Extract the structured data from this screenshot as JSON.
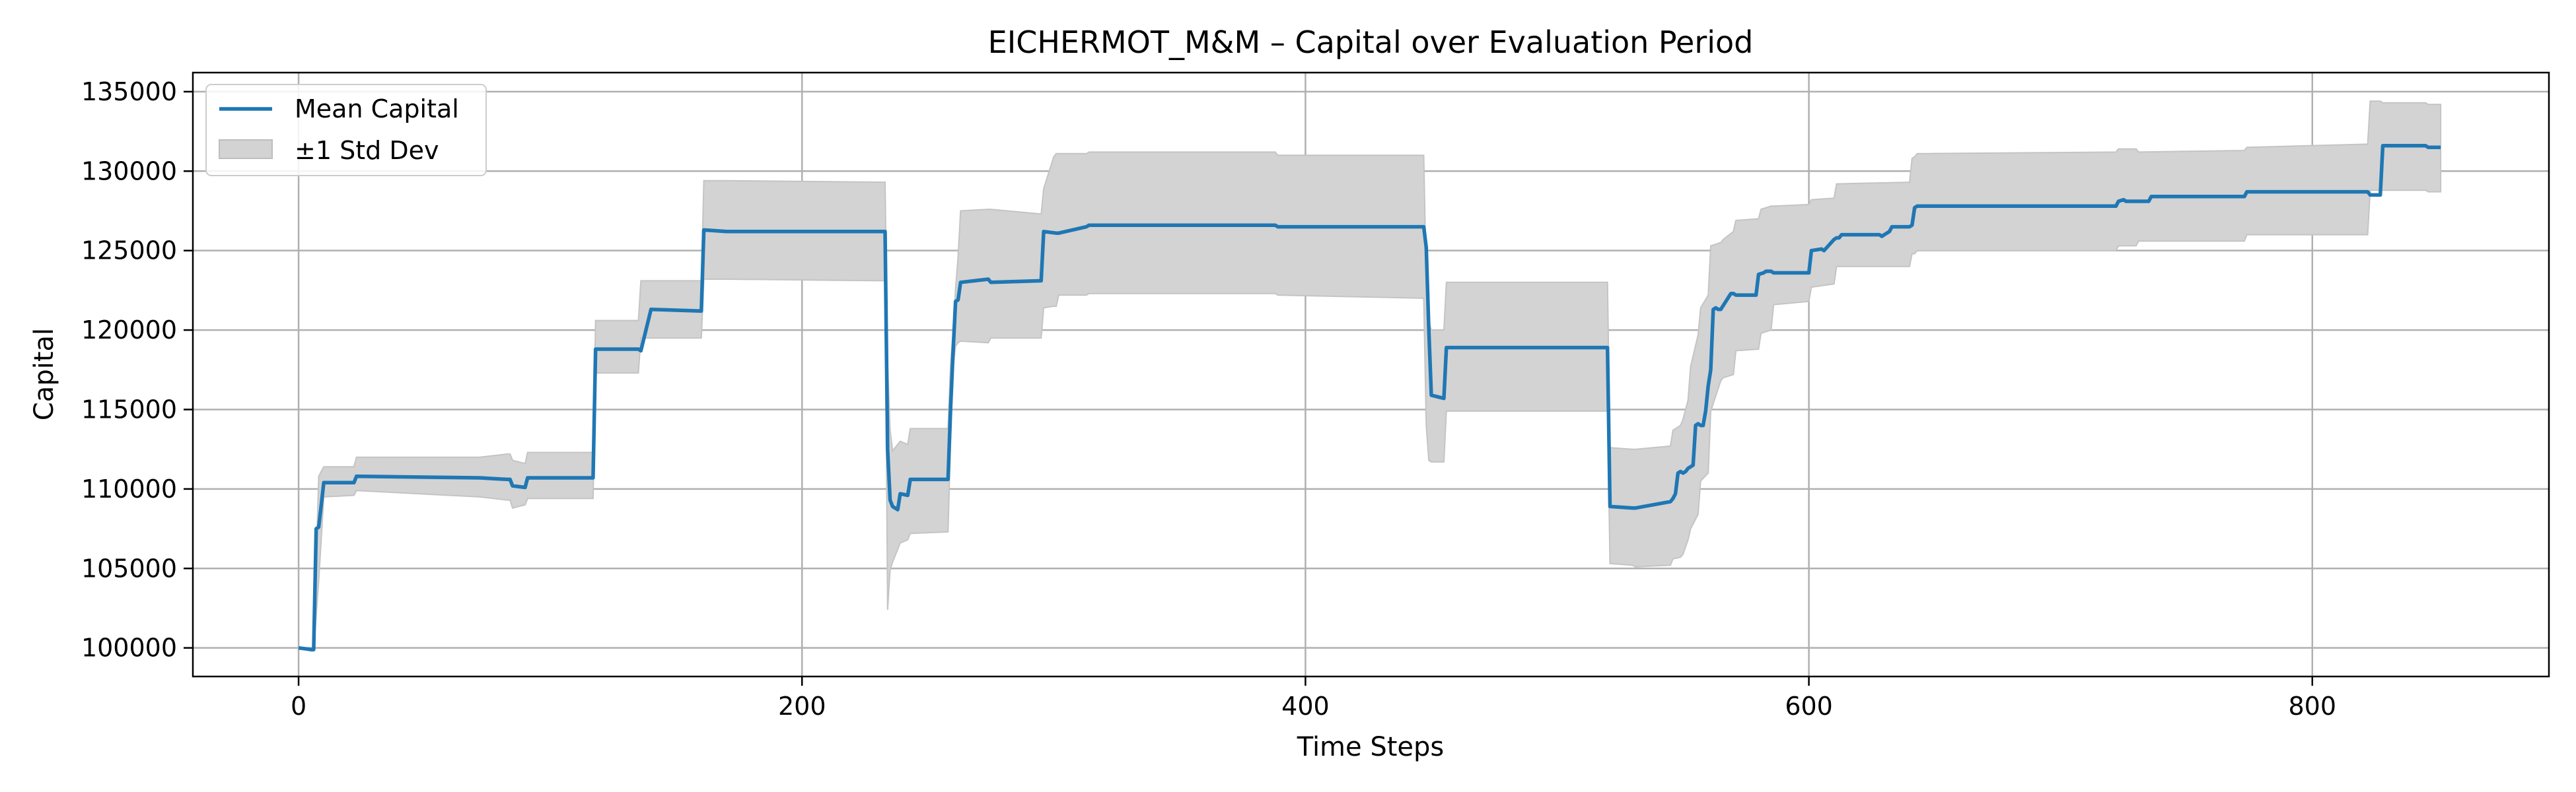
{
  "chart_data": {
    "type": "line",
    "title": "EICHERMOT_M&M – Capital over Evaluation Period",
    "xlabel": "Time Steps",
    "ylabel": "Capital",
    "xlim": [
      -42,
      894
    ],
    "ylim": [
      98200,
      136200
    ],
    "xticks": [
      0,
      200,
      400,
      600,
      800
    ],
    "yticks": [
      100000,
      105000,
      110000,
      115000,
      120000,
      125000,
      130000,
      135000
    ],
    "grid": true,
    "legend": "top-left",
    "colors": {
      "mean": "#1f77b4",
      "band": "#d3d3d3"
    },
    "series": [
      {
        "name": "Mean Capital",
        "kind": "line",
        "x": [
          0,
          5,
          6,
          7,
          8,
          9,
          10,
          22,
          23,
          72,
          83,
          84,
          85,
          90,
          91,
          117,
          118,
          135,
          136,
          140,
          160,
          161,
          170,
          233,
          234,
          235,
          236,
          238,
          239,
          242,
          243,
          258,
          259,
          260,
          261,
          262,
          263,
          274,
          275,
          295,
          296,
          301,
          302,
          313,
          314,
          388,
          389,
          447,
          448,
          449,
          450,
          455,
          456,
          520,
          521,
          530,
          531,
          545,
          546,
          547,
          548,
          549,
          550,
          551,
          552,
          553,
          554,
          555,
          556,
          557,
          558,
          559,
          560,
          561,
          562,
          563,
          564,
          565,
          569,
          570,
          571,
          579,
          580,
          582,
          583,
          585,
          586,
          600,
          601,
          605,
          606,
          610,
          611,
          612,
          613,
          614,
          628,
          629,
          630,
          631,
          632,
          633,
          634,
          640,
          641,
          642,
          643,
          722,
          723,
          725,
          726,
          735,
          736,
          773,
          774,
          800,
          801,
          822,
          823,
          827,
          828,
          845,
          846,
          850,
          851
        ],
        "y": [
          100000,
          99900,
          99900,
          107500,
          107600,
          109000,
          110400,
          110400,
          110800,
          110700,
          110600,
          110600,
          110200,
          110100,
          110700,
          110700,
          118800,
          118800,
          118700,
          121300,
          121200,
          126300,
          126200,
          126200,
          112500,
          109300,
          108900,
          108700,
          109700,
          109600,
          110600,
          110600,
          115000,
          118600,
          121800,
          121900,
          123000,
          123200,
          123000,
          123100,
          126200,
          126100,
          126100,
          126500,
          126600,
          126600,
          126500,
          126500,
          125200,
          120000,
          115900,
          115700,
          118900,
          118900,
          108900,
          108800,
          108800,
          109200,
          109400,
          109700,
          111000,
          111100,
          111000,
          111100,
          111300,
          111400,
          111500,
          114000,
          114100,
          114000,
          114000,
          114900,
          116500,
          117500,
          121300,
          121400,
          121300,
          121300,
          122300,
          122300,
          122200,
          122200,
          123500,
          123600,
          123700,
          123700,
          123600,
          123600,
          125000,
          125100,
          125000,
          125700,
          125800,
          125800,
          126000,
          126000,
          126000,
          125900,
          126000,
          126100,
          126200,
          126500,
          126500,
          126500,
          126600,
          127700,
          127800,
          127800,
          128100,
          128200,
          128100,
          128100,
          128400,
          128400,
          128700,
          128700,
          128700,
          128700,
          128500,
          128500,
          131600,
          131600,
          131500,
          131500,
          131500
        ]
      },
      {
        "name": "±1 Std Dev",
        "kind": "band",
        "x": [
          0,
          5,
          6,
          8,
          10,
          22,
          23,
          72,
          83,
          84,
          85,
          90,
          91,
          117,
          118,
          135,
          136,
          160,
          161,
          170,
          233,
          234,
          235,
          236,
          238,
          239,
          242,
          243,
          258,
          259,
          260,
          261,
          262,
          263,
          274,
          275,
          295,
          296,
          300,
          301,
          302,
          313,
          314,
          388,
          389,
          447,
          448,
          449,
          450,
          455,
          456,
          520,
          521,
          530,
          531,
          545,
          546,
          549,
          550,
          552,
          553,
          556,
          557,
          560,
          561,
          565,
          566,
          570,
          571,
          580,
          581,
          585,
          586,
          600,
          601,
          610,
          611,
          640,
          641,
          642,
          643,
          722,
          723,
          730,
          731,
          773,
          774,
          822,
          823,
          827,
          828,
          845,
          846,
          851
        ],
        "lower": [
          100000,
          99800,
          99800,
          104200,
          109500,
          109600,
          109900,
          109500,
          109300,
          109300,
          108800,
          109000,
          109400,
          109400,
          117300,
          117300,
          119500,
          119500,
          123200,
          123200,
          123100,
          102400,
          104900,
          105400,
          106200,
          106600,
          106800,
          107200,
          107300,
          112900,
          117600,
          119000,
          119200,
          119300,
          119200,
          119500,
          119500,
          121400,
          121500,
          121500,
          122200,
          122200,
          122300,
          122300,
          122200,
          122000,
          114000,
          111800,
          111700,
          111700,
          114900,
          114900,
          105300,
          105200,
          105100,
          105200,
          105600,
          105700,
          105900,
          106800,
          107500,
          108400,
          110500,
          111000,
          114900,
          116800,
          117000,
          117200,
          118700,
          118800,
          119800,
          120000,
          121600,
          121800,
          122700,
          122900,
          124000,
          124000,
          124800,
          124800,
          125000,
          125000,
          125300,
          125300,
          125600,
          125600,
          126000,
          126000,
          128800,
          128800,
          128800,
          128800,
          128700,
          128700
        ],
        "upper": [
          100000,
          100000,
          100000,
          110800,
          111400,
          111400,
          112000,
          112000,
          112200,
          112200,
          111800,
          111600,
          112300,
          112300,
          120600,
          120600,
          123100,
          123100,
          129400,
          129400,
          129300,
          117900,
          113700,
          112400,
          112800,
          113000,
          112800,
          113800,
          113800,
          117800,
          119900,
          122600,
          124600,
          127500,
          127600,
          127600,
          127300,
          128900,
          130900,
          131100,
          131100,
          131100,
          131200,
          131200,
          131000,
          131000,
          123000,
          120500,
          120000,
          120000,
          123000,
          123000,
          112600,
          112500,
          112500,
          112700,
          113700,
          114000,
          114400,
          115600,
          117700,
          119700,
          121400,
          122200,
          125300,
          125500,
          125700,
          126200,
          126900,
          127000,
          127600,
          127800,
          127800,
          127900,
          128200,
          128300,
          129200,
          129300,
          130800,
          130900,
          131100,
          131200,
          131400,
          131400,
          131200,
          131300,
          131500,
          131700,
          134400,
          134400,
          134300,
          134300,
          134200,
          134200
        ]
      }
    ]
  }
}
